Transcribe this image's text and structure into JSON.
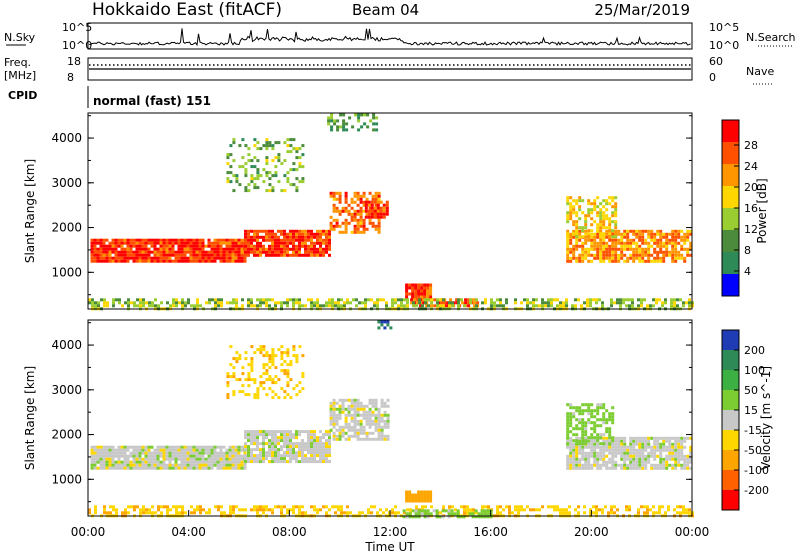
{
  "header": {
    "title": "Hokkaido East (fitACF)",
    "beam": "Beam 04",
    "date": "25/Mar/2019"
  },
  "status_panels": {
    "nsky_label": "N.Sky",
    "nsky_ticks": [
      "10^5",
      "10^0"
    ],
    "nsearch_label": "N.Search",
    "nsearch_ticks": [
      "10^5",
      "10^0"
    ],
    "freq_label_1": "Freq.",
    "freq_label_2": "[MHz]",
    "freq_ticks": [
      "18",
      "8"
    ],
    "nave_label": "Nave",
    "nave_ticks": [
      "60",
      "0"
    ],
    "cpid_label": "CPID",
    "cpid_text": "normal (fast) 151"
  },
  "chart_data": [
    {
      "type": "heatmap",
      "quantity": "Power",
      "colorbar_label": "Power [dB]",
      "colorbar_ticks": [
        "28",
        "24",
        "20",
        "16",
        "12",
        "8",
        "4"
      ],
      "colorbar_colors": [
        "#ff0000",
        "#ff5000",
        "#ff9600",
        "#ffd700",
        "#9acd32",
        "#4b8b3b",
        "#2e8b57",
        "#0000ff"
      ],
      "ylabel": "Slant Range [km]",
      "yticks": [
        1000,
        2000,
        3000,
        4000
      ],
      "ylim": [
        180,
        4560
      ],
      "xlim_hours": [
        0,
        24
      ],
      "regions": [
        {
          "t0": 0.1,
          "t1": 6.2,
          "r0": 1250,
          "r1": 1750,
          "power_db": 26,
          "density": 0.95
        },
        {
          "t0": 6.2,
          "t1": 9.6,
          "r0": 1400,
          "r1": 1950,
          "power_db": 26,
          "density": 0.9
        },
        {
          "t0": 9.6,
          "t1": 11.6,
          "r0": 1900,
          "r1": 2800,
          "power_db": 22,
          "density": 0.6
        },
        {
          "t0": 11.0,
          "t1": 11.9,
          "r0": 2200,
          "r1": 2600,
          "power_db": 26,
          "density": 0.8
        },
        {
          "t0": 19.0,
          "t1": 24.0,
          "r0": 1250,
          "r1": 1950,
          "power_db": 20,
          "density": 0.8
        },
        {
          "t0": 19.0,
          "t1": 21.0,
          "r0": 1800,
          "r1": 2700,
          "power_db": 16,
          "density": 0.55
        },
        {
          "t0": 12.6,
          "t1": 13.6,
          "r0": 450,
          "r1": 750,
          "power_db": 26,
          "density": 0.95
        },
        {
          "t0": 12.8,
          "t1": 15.5,
          "r0": 220,
          "r1": 420,
          "power_db": 24,
          "density": 0.8
        },
        {
          "t0": 0.0,
          "t1": 24.0,
          "r0": 190,
          "r1": 420,
          "power_db": 12,
          "density": 0.55
        },
        {
          "t0": 5.5,
          "t1": 8.5,
          "r0": 2800,
          "r1": 4000,
          "power_db": 10,
          "density": 0.3
        },
        {
          "t0": 9.5,
          "t1": 11.5,
          "r0": 4200,
          "r1": 4550,
          "power_db": 8,
          "density": 0.4
        }
      ]
    },
    {
      "type": "heatmap",
      "quantity": "Velocity",
      "colorbar_label": "Velocity [m s^-1]",
      "colorbar_ticks": [
        "200",
        "100",
        "50",
        "15",
        "-15",
        "-50",
        "-100",
        "-200"
      ],
      "colorbar_colors": [
        "#1f3cb4",
        "#2e8b57",
        "#3cb043",
        "#7ccd32",
        "#c8c8c8",
        "#ffd700",
        "#ffa500",
        "#ff6000",
        "#ff0000"
      ],
      "ylabel": "Slant Range [km]",
      "yticks": [
        1000,
        2000,
        3000,
        4000
      ],
      "ylim": [
        180,
        4560
      ],
      "xticks": [
        "00:00",
        "04:00",
        "08:00",
        "12:00",
        "16:00",
        "20:00",
        "00:00"
      ],
      "xlabel": "Time UT",
      "xlim_hours": [
        0,
        24
      ],
      "regions": [
        {
          "t0": 0.1,
          "t1": 6.2,
          "r0": 1250,
          "r1": 1750,
          "velocity": 0,
          "density": 0.95
        },
        {
          "t0": 6.2,
          "t1": 9.6,
          "r0": 1400,
          "r1": 2100,
          "velocity": 0,
          "density": 0.85
        },
        {
          "t0": 9.6,
          "t1": 11.9,
          "r0": 1900,
          "r1": 2800,
          "velocity": 0,
          "density": 0.7
        },
        {
          "t0": 19.0,
          "t1": 24.0,
          "r0": 1250,
          "r1": 1950,
          "velocity": 0,
          "density": 0.85
        },
        {
          "t0": 19.0,
          "t1": 20.8,
          "r0": 1800,
          "r1": 2700,
          "velocity": 30,
          "density": 0.55
        },
        {
          "t0": 12.6,
          "t1": 13.6,
          "r0": 500,
          "r1": 750,
          "velocity": -80,
          "density": 0.95
        },
        {
          "t0": 0.0,
          "t1": 24.0,
          "r0": 190,
          "r1": 420,
          "velocity": -40,
          "density": 0.5
        },
        {
          "t0": 12.5,
          "t1": 16.0,
          "r0": 190,
          "r1": 330,
          "velocity": 30,
          "density": 0.6
        },
        {
          "t0": 5.5,
          "t1": 8.5,
          "r0": 2800,
          "r1": 4000,
          "velocity": -40,
          "density": 0.3
        },
        {
          "t0": 11.5,
          "t1": 12.0,
          "r0": 4350,
          "r1": 4550,
          "velocity": 200,
          "density": 0.6
        }
      ]
    }
  ]
}
